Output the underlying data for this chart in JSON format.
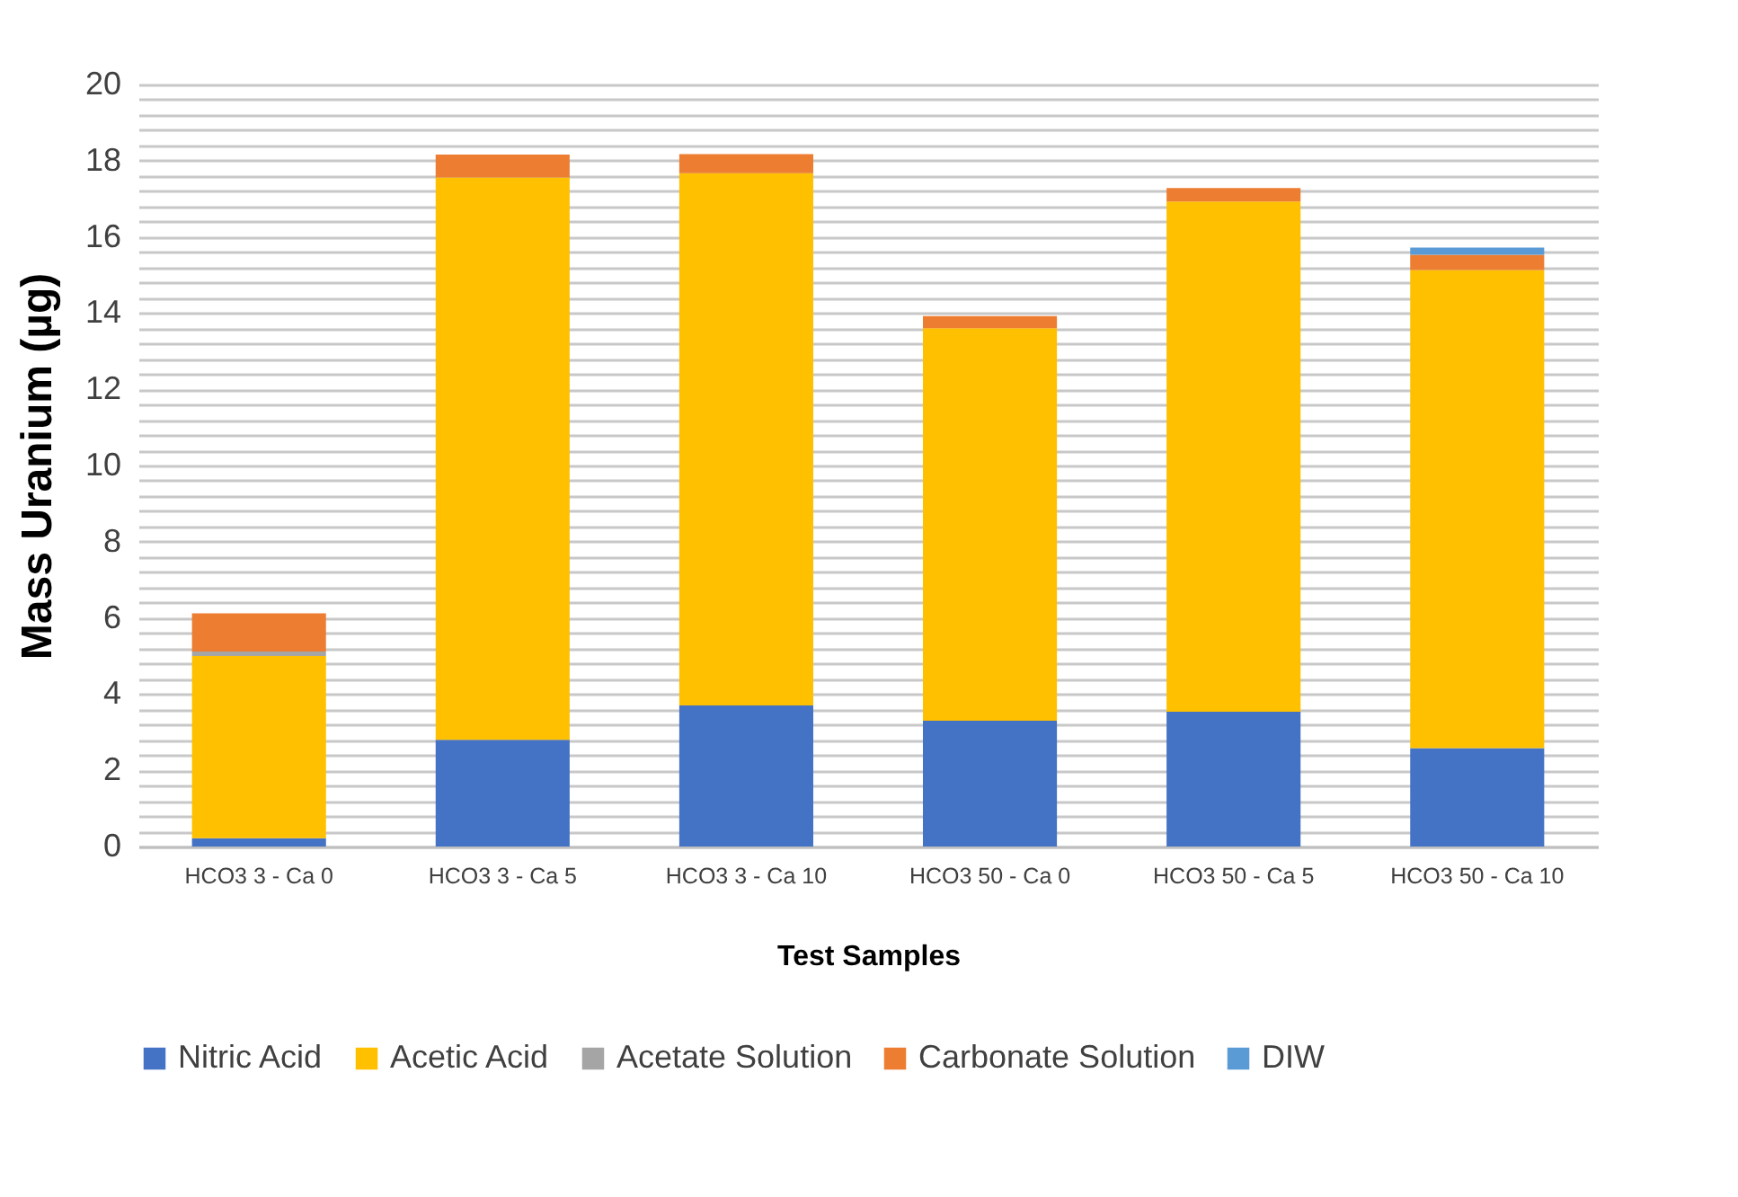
{
  "chart_data": {
    "type": "bar",
    "stacked": true,
    "xlabel": "Test Samples",
    "ylabel": "Mass Uranium (µg)",
    "categories": [
      "HCO3 3 - Ca 0",
      "HCO3 3 - Ca 5",
      "HCO3 3 - Ca 10",
      "HCO3 50 - Ca 0",
      "HCO3 50 - Ca 5",
      "HCO3 50 - Ca 10"
    ],
    "series": [
      {
        "name": "Nitric Acid",
        "color": "#4472c4",
        "values": [
          0.22,
          2.8,
          3.7,
          3.3,
          3.54,
          2.58
        ]
      },
      {
        "name": "Acetic Acid",
        "color": "#ffc000",
        "values": [
          4.78,
          14.76,
          13.97,
          10.3,
          13.39,
          12.55
        ]
      },
      {
        "name": "Acetate Solution",
        "color": "#a5a5a5",
        "values": [
          0.12,
          0,
          0,
          0,
          0,
          0
        ]
      },
      {
        "name": "Carbonate Solution",
        "color": "#ed7d31",
        "values": [
          1.0,
          0.6,
          0.5,
          0.32,
          0.35,
          0.4
        ]
      },
      {
        "name": "DIW",
        "color": "#5b9bd5",
        "values": [
          0,
          0,
          0,
          0,
          0,
          0.19
        ]
      }
    ],
    "ylim": [
      0,
      20
    ],
    "yticks": [
      0,
      {
        "value": 0.4,
        "label": null
      },
      {
        "value": 0.8,
        "label": null
      },
      {
        "value": 1.2,
        "label": null
      },
      {
        "value": 1.6,
        "label": null
      },
      2,
      {
        "value": 2.4,
        "label": null
      },
      {
        "value": 2.8,
        "label": null
      },
      {
        "value": 3.2,
        "label": null
      },
      {
        "value": 3.6,
        "label": null
      },
      4,
      {
        "value": 4.4,
        "label": null
      },
      {
        "value": 4.8,
        "label": null
      },
      {
        "value": 5.2,
        "label": null
      },
      {
        "value": 5.6,
        "label": null
      },
      6,
      {
        "value": 6.4,
        "label": null
      },
      {
        "value": 6.8,
        "label": null
      },
      {
        "value": 7.2,
        "label": null
      },
      {
        "value": 7.6,
        "label": null
      },
      8,
      {
        "value": 8.4,
        "label": null
      },
      {
        "value": 8.8,
        "label": null
      },
      {
        "value": 9.2,
        "label": null
      },
      {
        "value": 9.6,
        "label": null
      },
      10,
      {
        "value": 10.4,
        "label": null
      },
      {
        "value": 10.8,
        "label": null
      },
      {
        "value": 11.2,
        "label": null
      },
      {
        "value": 11.6,
        "label": null
      },
      12,
      {
        "value": 12.4,
        "label": null
      },
      {
        "value": 12.8,
        "label": null
      },
      {
        "value": 13.2,
        "label": null
      },
      {
        "value": 13.6,
        "label": null
      },
      14,
      {
        "value": 14.4,
        "label": null
      },
      {
        "value": 14.8,
        "label": null
      },
      {
        "value": 15.2,
        "label": null
      },
      {
        "value": 15.6,
        "label": null
      },
      16,
      {
        "value": 16.4,
        "label": null
      },
      {
        "value": 16.8,
        "label": null
      },
      {
        "value": 17.2,
        "label": null
      },
      {
        "value": 17.6,
        "label": null
      },
      18,
      {
        "value": 18.4,
        "label": null
      },
      {
        "value": 18.8,
        "label": null
      },
      {
        "value": 19.2,
        "label": null
      },
      {
        "value": 19.6,
        "label": null
      },
      20
    ],
    "grid": "y",
    "legend": "bottom"
  }
}
